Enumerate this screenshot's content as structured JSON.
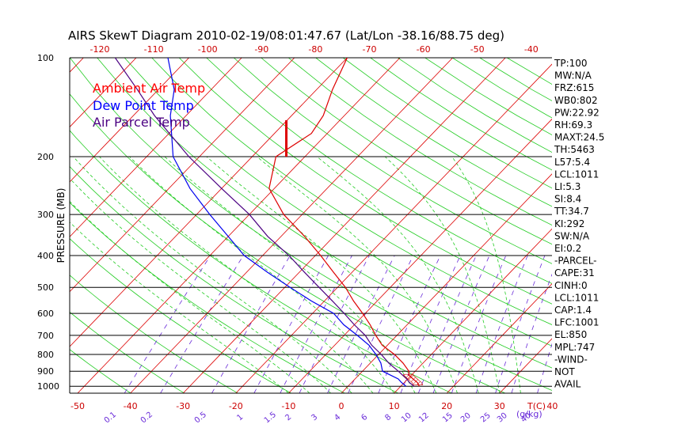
{
  "chart_data": {
    "type": "line",
    "title": "AIRS SkewT Diagram 2010-02-19/08:01:47.67 (Lat/Lon -38.16/88.75 deg)",
    "ylabel": "PRESSURE (MB)",
    "xlabel": "T(C)",
    "y_axis": {
      "scale": "log",
      "range": [
        1050,
        100
      ],
      "ticks": [
        100,
        200,
        300,
        400,
        500,
        600,
        700,
        800,
        900,
        1000
      ]
    },
    "x_axis_bottom": {
      "ticks": [
        -50,
        -40,
        -30,
        -20,
        -10,
        0,
        10,
        20,
        30,
        40
      ],
      "label": "T(C)"
    },
    "x_axis_top": {
      "ticks": [
        -120,
        -110,
        -100,
        -90,
        -80,
        -70,
        -60,
        -50,
        -40
      ]
    },
    "mixing_ratio_ticks": [
      "0.1",
      "0.2",
      "0.5",
      "1",
      "1.5",
      "2",
      "3",
      "4",
      "6",
      "8",
      "10",
      "12",
      "15",
      "20",
      "25",
      "30",
      "40"
    ],
    "mixing_ratio_label": "(g/kg)",
    "legend": {
      "placement": "top-left",
      "entries": [
        {
          "label": "Ambient Air Temp",
          "color": "#ff0000"
        },
        {
          "label": "Dew Point Temp",
          "color": "#0000ff"
        },
        {
          "label": "Air Parcel Temp",
          "color": "#4b0082"
        }
      ]
    },
    "series": [
      {
        "name": "Ambient Air Temp",
        "color": "#dd0000",
        "points": [
          [
            1000,
            13.5
          ],
          [
            975,
            12.5
          ],
          [
            950,
            11.0
          ],
          [
            925,
            9.5
          ],
          [
            900,
            8.8
          ],
          [
            850,
            6.2
          ],
          [
            800,
            3.0
          ],
          [
            750,
            -1.0
          ],
          [
            700,
            -4.0
          ],
          [
            650,
            -7.0
          ],
          [
            600,
            -10.5
          ],
          [
            550,
            -14.5
          ],
          [
            500,
            -18.5
          ],
          [
            450,
            -23.5
          ],
          [
            400,
            -29.0
          ],
          [
            350,
            -35.5
          ],
          [
            300,
            -43.5
          ],
          [
            250,
            -51.0
          ],
          [
            200,
            -55.5
          ],
          [
            170,
            -53.0
          ],
          [
            150,
            -54.0
          ],
          [
            125,
            -57.0
          ],
          [
            100,
            -60.0
          ]
        ]
      },
      {
        "name": "Dew Point Temp",
        "color": "#0000ee",
        "points": [
          [
            1000,
            11.0
          ],
          [
            975,
            9.5
          ],
          [
            950,
            8.2
          ],
          [
            925,
            6.0
          ],
          [
            900,
            3.8
          ],
          [
            850,
            2.0
          ],
          [
            800,
            -0.5
          ],
          [
            750,
            -3.5
          ],
          [
            700,
            -7.5
          ],
          [
            650,
            -12.0
          ],
          [
            600,
            -16.0
          ],
          [
            550,
            -22.5
          ],
          [
            500,
            -29.0
          ],
          [
            450,
            -36.0
          ],
          [
            400,
            -43.5
          ],
          [
            350,
            -50.0
          ],
          [
            300,
            -57.5
          ],
          [
            250,
            -66.0
          ],
          [
            200,
            -75.0
          ],
          [
            150,
            -83.0
          ],
          [
            125,
            -87.0
          ],
          [
            100,
            -94.0
          ]
        ]
      },
      {
        "name": "Air Parcel Temp",
        "color": "#4b0082",
        "points": [
          [
            1000,
            12.5
          ],
          [
            975,
            11.0
          ],
          [
            950,
            9.8
          ],
          [
            925,
            8.3
          ],
          [
            900,
            6.8
          ],
          [
            850,
            3.5
          ],
          [
            800,
            0.5
          ],
          [
            750,
            -3.0
          ],
          [
            700,
            -6.0
          ],
          [
            650,
            -10.0
          ],
          [
            600,
            -14.0
          ],
          [
            550,
            -18.5
          ],
          [
            500,
            -23.5
          ],
          [
            450,
            -29.0
          ],
          [
            400,
            -35.0
          ],
          [
            350,
            -42.5
          ],
          [
            300,
            -50.0
          ],
          [
            250,
            -60.0
          ],
          [
            200,
            -72.0
          ],
          [
            150,
            -86.0
          ],
          [
            125,
            -94.0
          ],
          [
            100,
            -104.0
          ]
        ]
      }
    ],
    "tropopause_marker": {
      "p_top": 155,
      "p_bottom": 200,
      "t": -57.0,
      "color": "#dd0000"
    },
    "cape_shading_between_mb": [
      920,
      990
    ],
    "indices": [
      "TP:100",
      "MW:N/A",
      "FRZ:615",
      "WB0:802",
      "PW:22.92",
      "RH:69.3",
      "MAXT:24.5",
      "TH:5463",
      "L57:5.4",
      "LCL:1011",
      "LI:5.3",
      "SI:8.4",
      "TT:34.7",
      "KI:292",
      "SW:N/A",
      "EI:0.2",
      "-PARCEL-",
      "CAPE:31",
      "CINH:0",
      "LCL:1011",
      "CAP:1.4",
      "LFC:1001",
      "EL:850",
      "MPL:747",
      "-WIND-",
      "NOT",
      "AVAIL"
    ],
    "grid": true,
    "colors": {
      "isotherms": "#dd0000",
      "dry_adiabats": "#22cc22",
      "moist_adiabats": "#22cc22",
      "mixing_ratio_lines": "#6a2bd9",
      "pressure_lines": "#000000"
    }
  }
}
